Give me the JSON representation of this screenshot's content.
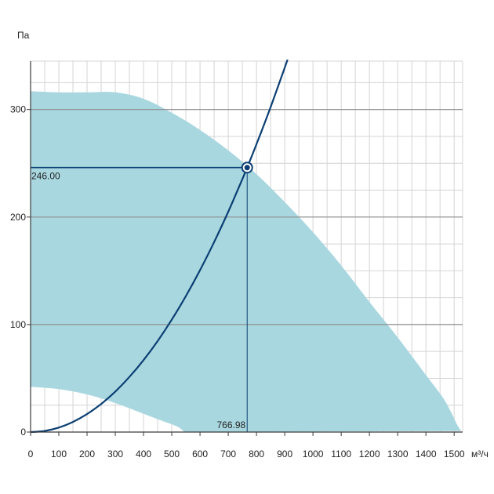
{
  "chart_data": {
    "type": "line",
    "xlabel": "м³/ч",
    "ylabel": "Па",
    "xlim": [
      0,
      1530
    ],
    "ylim": [
      0,
      345
    ],
    "x_ticks": [
      0,
      100,
      200,
      300,
      400,
      500,
      600,
      700,
      800,
      900,
      1000,
      1100,
      1200,
      1300,
      1400,
      1500
    ],
    "y_ticks": [
      0,
      100,
      200,
      300
    ],
    "grid": true,
    "colors": {
      "region": "#a9d7e0",
      "curve": "#0b3f73",
      "major_grid": "#8e8e8e",
      "minor_grid": "#d4d4d4"
    },
    "operating_region": {
      "upper": [
        {
          "x": 0,
          "y": 317
        },
        {
          "x": 100,
          "y": 316
        },
        {
          "x": 200,
          "y": 316
        },
        {
          "x": 300,
          "y": 316
        },
        {
          "x": 400,
          "y": 310
        },
        {
          "x": 500,
          "y": 297
        },
        {
          "x": 600,
          "y": 281
        },
        {
          "x": 700,
          "y": 262
        },
        {
          "x": 800,
          "y": 240
        },
        {
          "x": 900,
          "y": 214
        },
        {
          "x": 1000,
          "y": 186
        },
        {
          "x": 1100,
          "y": 155
        },
        {
          "x": 1200,
          "y": 121
        },
        {
          "x": 1300,
          "y": 88
        },
        {
          "x": 1400,
          "y": 53
        },
        {
          "x": 1460,
          "y": 32
        },
        {
          "x": 1490,
          "y": 18
        },
        {
          "x": 1510,
          "y": 7
        },
        {
          "x": 1525,
          "y": 1
        }
      ],
      "lower": [
        {
          "x": 0,
          "y": 42
        },
        {
          "x": 100,
          "y": 40
        },
        {
          "x": 200,
          "y": 35
        },
        {
          "x": 300,
          "y": 27
        },
        {
          "x": 400,
          "y": 17
        },
        {
          "x": 470,
          "y": 10
        },
        {
          "x": 520,
          "y": 5
        },
        {
          "x": 545,
          "y": 0
        }
      ]
    },
    "system_curve": {
      "name": "",
      "points": [
        {
          "x": 0,
          "y": 0
        },
        {
          "x": 50,
          "y": 1.05
        },
        {
          "x": 100,
          "y": 4.18
        },
        {
          "x": 150,
          "y": 9.41
        },
        {
          "x": 200,
          "y": 16.73
        },
        {
          "x": 250,
          "y": 26.14
        },
        {
          "x": 300,
          "y": 37.64
        },
        {
          "x": 350,
          "y": 51.24
        },
        {
          "x": 400,
          "y": 66.93
        },
        {
          "x": 450,
          "y": 84.71
        },
        {
          "x": 500,
          "y": 104.58
        },
        {
          "x": 550,
          "y": 126.54
        },
        {
          "x": 600,
          "y": 150.6
        },
        {
          "x": 650,
          "y": 176.75
        },
        {
          "x": 700,
          "y": 204.98
        },
        {
          "x": 750,
          "y": 235.32
        },
        {
          "x": 766.98,
          "y": 246.0
        },
        {
          "x": 800,
          "y": 267.74
        },
        {
          "x": 850,
          "y": 302.26
        },
        {
          "x": 900,
          "y": 338.87
        },
        {
          "x": 910,
          "y": 346.4
        }
      ]
    },
    "operating_point": {
      "x": 766.98,
      "y": 246.0,
      "x_label": "766.98",
      "y_label": "246.00"
    }
  }
}
